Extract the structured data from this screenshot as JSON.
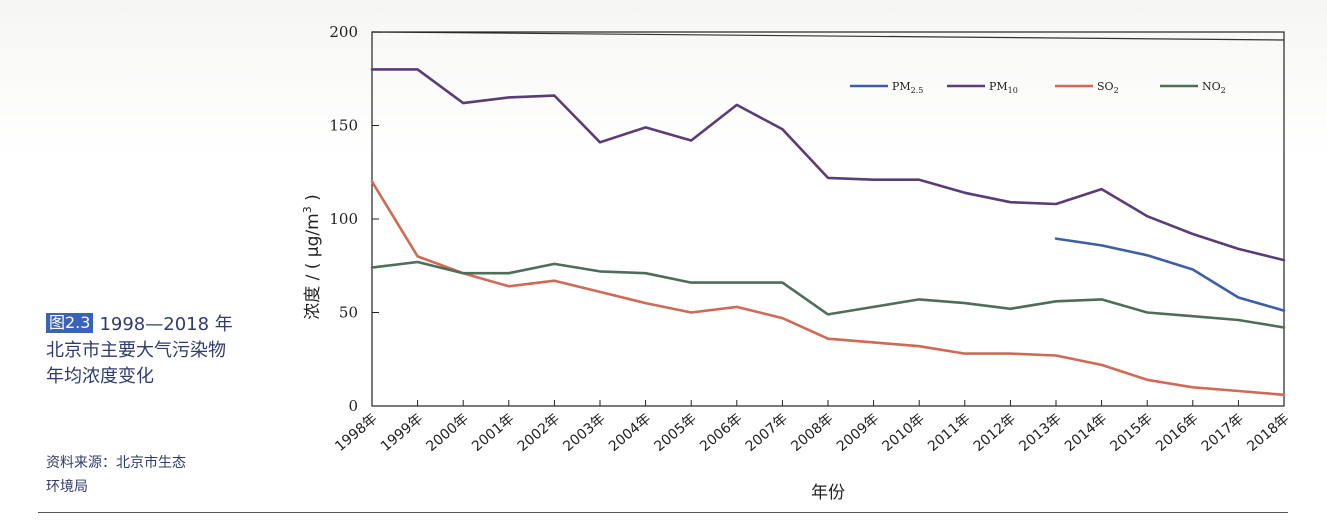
{
  "caption": {
    "fig_tag": "图2.3",
    "line1": "1998—2018 年",
    "line2": "北京市主要大气污染物",
    "line3": "年均浓度变化"
  },
  "source": {
    "line1": "资料来源：北京市生态",
    "line2": "环境局"
  },
  "chart_data": {
    "type": "line",
    "title": "",
    "xlabel": "年份",
    "ylabel_main": "浓度 / ( μg/m",
    "ylabel_sup": "3",
    "ylabel_close": " )",
    "ylim": [
      0,
      200
    ],
    "yticks": [
      0,
      50,
      100,
      150,
      200
    ],
    "grid": false,
    "legend_position": "top-right",
    "categories": [
      "1998年",
      "1999年",
      "2000年",
      "2001年",
      "2002年",
      "2003年",
      "2004年",
      "2005年",
      "2006年",
      "2007年",
      "2008年",
      "2009年",
      "2010年",
      "2011年",
      "2012年",
      "2013年",
      "2014年",
      "2015年",
      "2016年",
      "2017年",
      "2018年"
    ],
    "series": [
      {
        "name": "PM2.5",
        "label_main": "PM",
        "label_sub": "2.5",
        "color": "#3d5fa8",
        "values": [
          null,
          null,
          null,
          null,
          null,
          null,
          null,
          null,
          null,
          null,
          null,
          null,
          null,
          null,
          null,
          89.5,
          85.9,
          80.6,
          73,
          58,
          51
        ]
      },
      {
        "name": "PM10",
        "label_main": "PM",
        "label_sub": "10",
        "color": "#5a3d78",
        "values": [
          180,
          180,
          162,
          165,
          166,
          141,
          149,
          142,
          161,
          148,
          122,
          121,
          121,
          114,
          109,
          108,
          116,
          101.5,
          92,
          84,
          78
        ]
      },
      {
        "name": "SO2",
        "label_main": "SO",
        "label_sub": "2",
        "color": "#d06a55",
        "values": [
          120,
          80,
          71,
          64,
          67,
          61,
          55,
          50,
          53,
          47,
          36,
          34,
          32,
          28,
          28,
          27,
          22,
          14,
          10,
          8,
          6
        ]
      },
      {
        "name": "NO2",
        "label_main": "NO",
        "label_sub": "2",
        "color": "#4e6e58",
        "values": [
          74,
          77,
          71,
          71,
          76,
          72,
          71,
          66,
          66,
          66,
          49,
          53,
          57,
          55,
          52,
          56,
          57,
          50,
          48,
          46,
          42
        ]
      }
    ]
  }
}
